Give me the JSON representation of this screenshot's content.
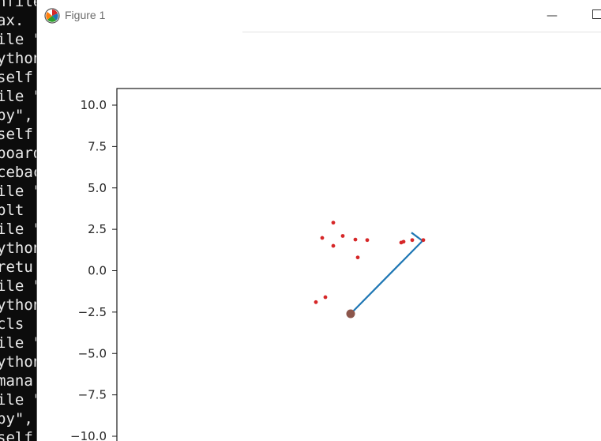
{
  "terminal": {
    "lines": [
      "nfile \"",
      "ax.",
      "ile \"",
      "ython",
      "self",
      "ile \"",
      "py\",",
      "self",
      "board",
      "ceback",
      "ile \"",
      "plt",
      "ile \"",
      "ython",
      "retu",
      "ile \"",
      "ython",
      "cls",
      "ile \"",
      "ython",
      "mana",
      "ile \"",
      "py\",",
      "self"
    ]
  },
  "window": {
    "title": "Figure 1",
    "minimize_label": "—"
  },
  "colors": {
    "scatter": "#d62728",
    "line": "#1f77b4",
    "marker": "#8c564b"
  },
  "chart_data": {
    "type": "scatter",
    "ylim": [
      -10,
      10
    ],
    "y_ticks": [
      "10.0",
      "7.5",
      "5.0",
      "2.5",
      "0.0",
      "−2.5",
      "−5.0",
      "−7.5",
      "−10.0"
    ],
    "y_tick_values": [
      10,
      7.5,
      5,
      2.5,
      0,
      -2.5,
      -5,
      -7.5,
      -10
    ],
    "scatter_points_y": [
      2.9,
      1.98,
      1.5,
      2.1,
      1.88,
      1.85,
      0.8,
      1.7,
      1.75,
      1.85,
      1.85,
      -1.6,
      -1.9
    ],
    "scatter_points_x_rel": [
      0,
      -14,
      0,
      12,
      28,
      43,
      31,
      86,
      89,
      100,
      114,
      -10,
      -22
    ],
    "line_path_y": [
      -2.6,
      1.8,
      2.3
    ],
    "line_path_x_rel": [
      22,
      113,
      99
    ],
    "marker_point": {
      "x_rel": 22,
      "y": -2.6
    }
  }
}
